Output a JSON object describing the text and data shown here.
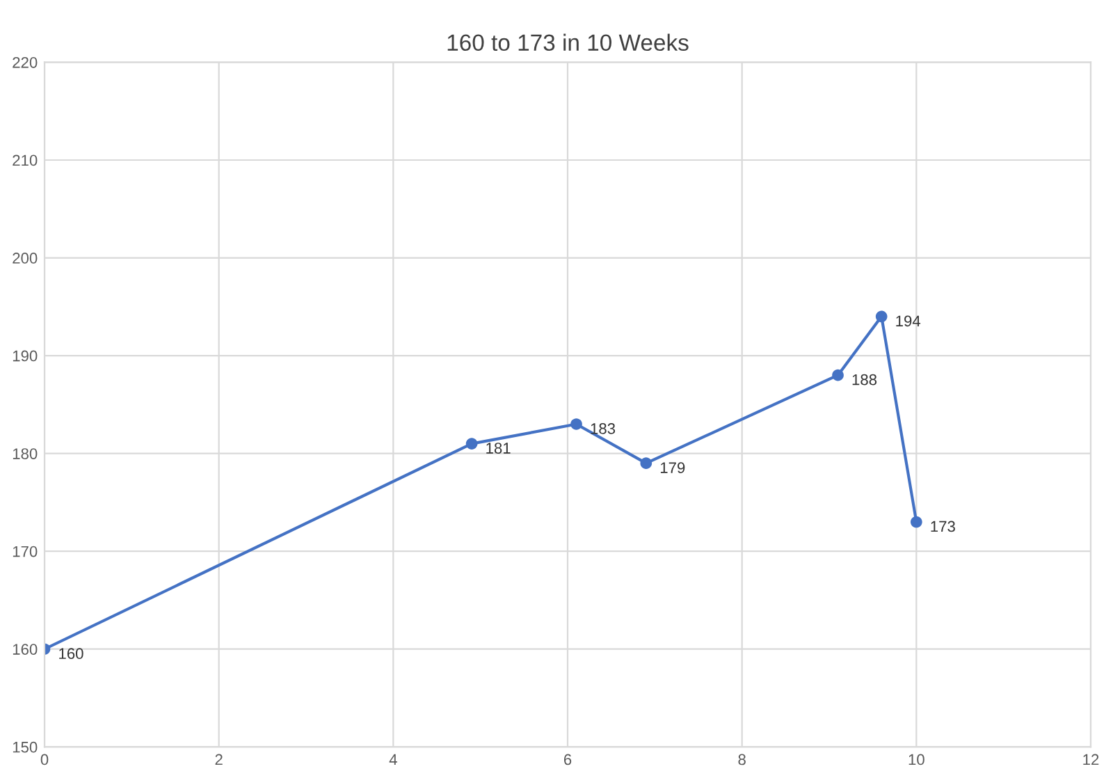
{
  "chart_data": {
    "type": "line",
    "title": "160 to 173 in 10 Weeks",
    "x": [
      0,
      4.9,
      6.1,
      6.9,
      9.1,
      9.6,
      10
    ],
    "series": [
      {
        "color": "#4472c4",
        "values": [
          160,
          181,
          183,
          179,
          188,
          194,
          173
        ]
      }
    ],
    "xlim": [
      0,
      12
    ],
    "xticks": [
      0,
      2,
      4,
      6,
      8,
      10,
      12
    ],
    "ylim": [
      150,
      220
    ],
    "yticks": [
      150,
      160,
      170,
      180,
      190,
      200,
      210,
      220
    ],
    "grid": true,
    "marker": "circle",
    "data_labels": true
  }
}
